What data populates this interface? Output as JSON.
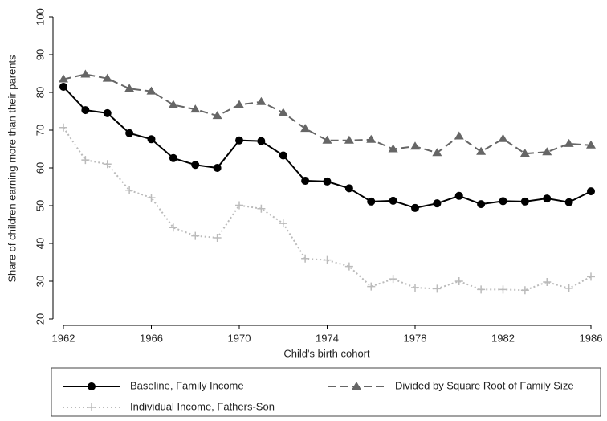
{
  "chart_data": {
    "type": "line",
    "x": [
      1962,
      1963,
      1964,
      1965,
      1966,
      1967,
      1968,
      1969,
      1970,
      1971,
      1972,
      1973,
      1974,
      1975,
      1976,
      1977,
      1978,
      1979,
      1980,
      1981,
      1982,
      1983,
      1984,
      1985,
      1986
    ],
    "x_label": "Child's birth cohort",
    "y_label": "Share of children earning more than their parents",
    "xlim": [
      1962,
      1986
    ],
    "xticks": [
      1962,
      1966,
      1970,
      1974,
      1978,
      1982,
      1986
    ],
    "ylim": [
      20,
      100
    ],
    "yticks": [
      20,
      30,
      40,
      50,
      60,
      70,
      80,
      90,
      100
    ],
    "series": [
      {
        "name": "Baseline, Family Income",
        "color": "#000000",
        "marker": "circle",
        "dash": "solid",
        "values": [
          81.5,
          75.3,
          74.5,
          69.2,
          67.6,
          62.6,
          60.8,
          60,
          67.3,
          67.1,
          63.3,
          56.6,
          56.4,
          54.6,
          51.1,
          51.3,
          49.4,
          50.6,
          52.6,
          50.4,
          51.2,
          51.1,
          51.9,
          50.9,
          53.8
        ]
      },
      {
        "name": "Divided by Square Root of Family Size",
        "color": "#666666",
        "marker": "triangle",
        "dash": "dashed",
        "values": [
          83.5,
          84.8,
          83.7,
          81,
          80.3,
          76.7,
          75.5,
          73.8,
          76.7,
          77.5,
          74.6,
          70.4,
          67.3,
          67.3,
          67.5,
          65,
          65.7,
          64,
          68.4,
          64.3,
          67.7,
          63.8,
          64.2,
          66.4,
          66
        ]
      },
      {
        "name": "Individual Income, Fathers-Son",
        "color": "#bbbbbb",
        "marker": "plus",
        "dash": "dashdot",
        "values": [
          70.7,
          62.1,
          61,
          54.1,
          52.1,
          44.2,
          42,
          41.5,
          50.1,
          49.2,
          45.3,
          36,
          35.6,
          33.9,
          28.6,
          30.6,
          28.3,
          28,
          30,
          27.8,
          27.8,
          27.6,
          29.8,
          28.1,
          31.2
        ]
      }
    ]
  }
}
